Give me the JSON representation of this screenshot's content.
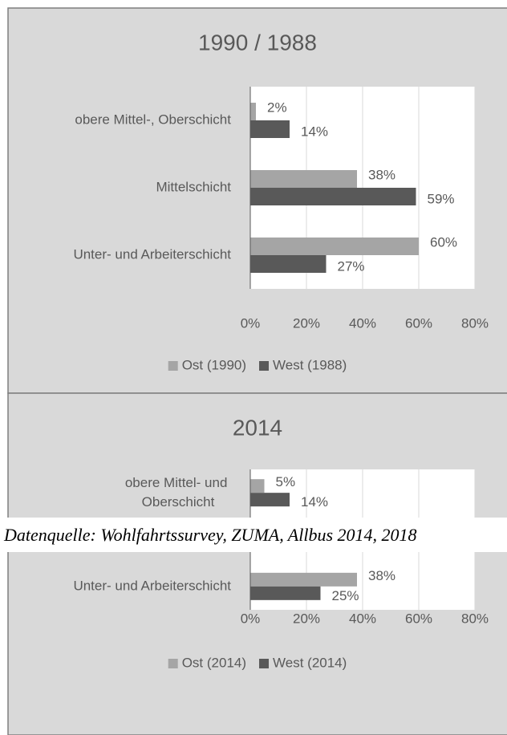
{
  "chart_data": [
    {
      "type": "bar",
      "orientation": "horizontal",
      "title": "1990 / 1988",
      "categories": [
        "obere Mittel-, Oberschicht",
        "Mittelschicht",
        "Unter- und Arbeiterschicht"
      ],
      "series": [
        {
          "name": "Ost (1990)",
          "color": "#a5a5a5",
          "values": [
            2,
            38,
            60
          ],
          "value_labels": [
            "2%",
            "38%",
            "60%"
          ]
        },
        {
          "name": "West (1988)",
          "color": "#595959",
          "values": [
            14,
            59,
            27
          ],
          "value_labels": [
            "14%",
            "59%",
            "27%"
          ]
        }
      ],
      "xlim": [
        0,
        80
      ],
      "xticks": [
        {
          "value": 0,
          "label": "0%"
        },
        {
          "value": 20,
          "label": "20%"
        },
        {
          "value": 40,
          "label": "40%"
        },
        {
          "value": 60,
          "label": "60%"
        },
        {
          "value": 80,
          "label": "80%"
        }
      ],
      "grid": true,
      "legend": "bottom"
    },
    {
      "type": "bar",
      "orientation": "horizontal",
      "title": "2014",
      "categories": [
        "obere Mittel- und Oberschicht",
        null,
        "Unter- und Arbeiterschicht"
      ],
      "series": [
        {
          "name": "Ost (2014)",
          "color": "#a5a5a5",
          "values": [
            5,
            null,
            38
          ],
          "value_labels": [
            "5%",
            null,
            "38%"
          ]
        },
        {
          "name": "West (2014)",
          "color": "#595959",
          "values": [
            14,
            null,
            25
          ],
          "value_labels": [
            "14%",
            null,
            "25%"
          ]
        }
      ],
      "xlim": [
        0,
        80
      ],
      "xticks": [
        {
          "value": 0,
          "label": "0%"
        },
        {
          "value": 20,
          "label": "20%"
        },
        {
          "value": 40,
          "label": "40%"
        },
        {
          "value": 60,
          "label": "60%"
        },
        {
          "value": 80,
          "label": "80%"
        }
      ],
      "grid": true,
      "legend": "bottom"
    }
  ],
  "caption": "Datenquelle: Wohlfahrtssurvey, ZUMA, Allbus 2014, 2018"
}
